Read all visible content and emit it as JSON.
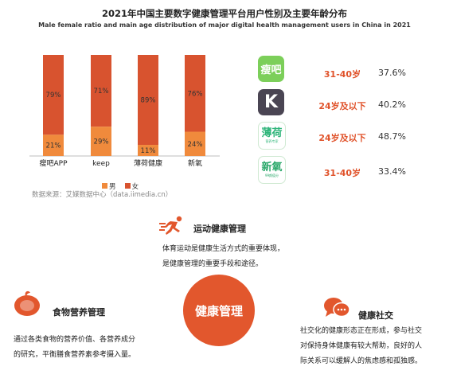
{
  "header": {
    "title": "2021年中国主要数字健康管理平台用户性别及主要年龄分布",
    "subtitle": "Male female ratio and main age distribution of major digital health management users in China in 2021"
  },
  "source": "数据来源：艾媒数据中心（data.iimedia.cn）",
  "colors": {
    "male": "#f08a3c",
    "female": "#d8532f",
    "accent": "#e0532b"
  },
  "chart_data": {
    "type": "bar",
    "stacked": true,
    "categories": [
      "瘦吧APP",
      "keep",
      "薄荷健康",
      "新氧"
    ],
    "series": [
      {
        "name": "男",
        "values": [
          21,
          29,
          11,
          24
        ],
        "labels": [
          "21%",
          "29%",
          "11%",
          "24%"
        ]
      },
      {
        "name": "女",
        "values": [
          79,
          71,
          89,
          76
        ],
        "labels": [
          "79%",
          "71%",
          "89%",
          "76%"
        ]
      }
    ],
    "ylim": [
      0,
      100
    ],
    "legend": "bottom",
    "grid": false
  },
  "apps": [
    {
      "icon": "shouba-app-icon",
      "icon_text": "瘦吧",
      "age": "31-40岁",
      "pct": "37.6%",
      "color": "#7ccf5a"
    },
    {
      "icon": "keep-app-icon",
      "icon_text": "K",
      "age": "24岁及以下",
      "pct": "40.2%",
      "color": "#4a4553"
    },
    {
      "icon": "boohee-app-icon",
      "icon_text": "薄荷",
      "icon_sub": "营养专家",
      "age": "24岁及以下",
      "pct": "48.7%",
      "color": "#ffffff"
    },
    {
      "icon": "soyoung-app-icon",
      "icon_text": "新氧",
      "icon_sub": "99颜值分",
      "age": "31-40岁",
      "pct": "33.4%",
      "color": "#ffffff"
    }
  ],
  "sections": {
    "sports": {
      "title": "运动健康管理",
      "lines": [
        "体育运动是健康生活方式的重要体现，",
        "是健康管理的重要手段和途径。"
      ]
    },
    "food": {
      "title": "食物营养管理",
      "lines": [
        "通过各类食物的营养价值、各营养成分",
        "的研究，平衡膳食营养素参考摄入量。"
      ]
    },
    "social": {
      "title": "健康社交",
      "lines": [
        "社交化的健康形态正在形成，参与社交",
        "对保持身体健康有较大帮助，良好的人",
        "际关系可以缓解人的焦虑感和孤独感。"
      ]
    },
    "center": "健康管理"
  }
}
